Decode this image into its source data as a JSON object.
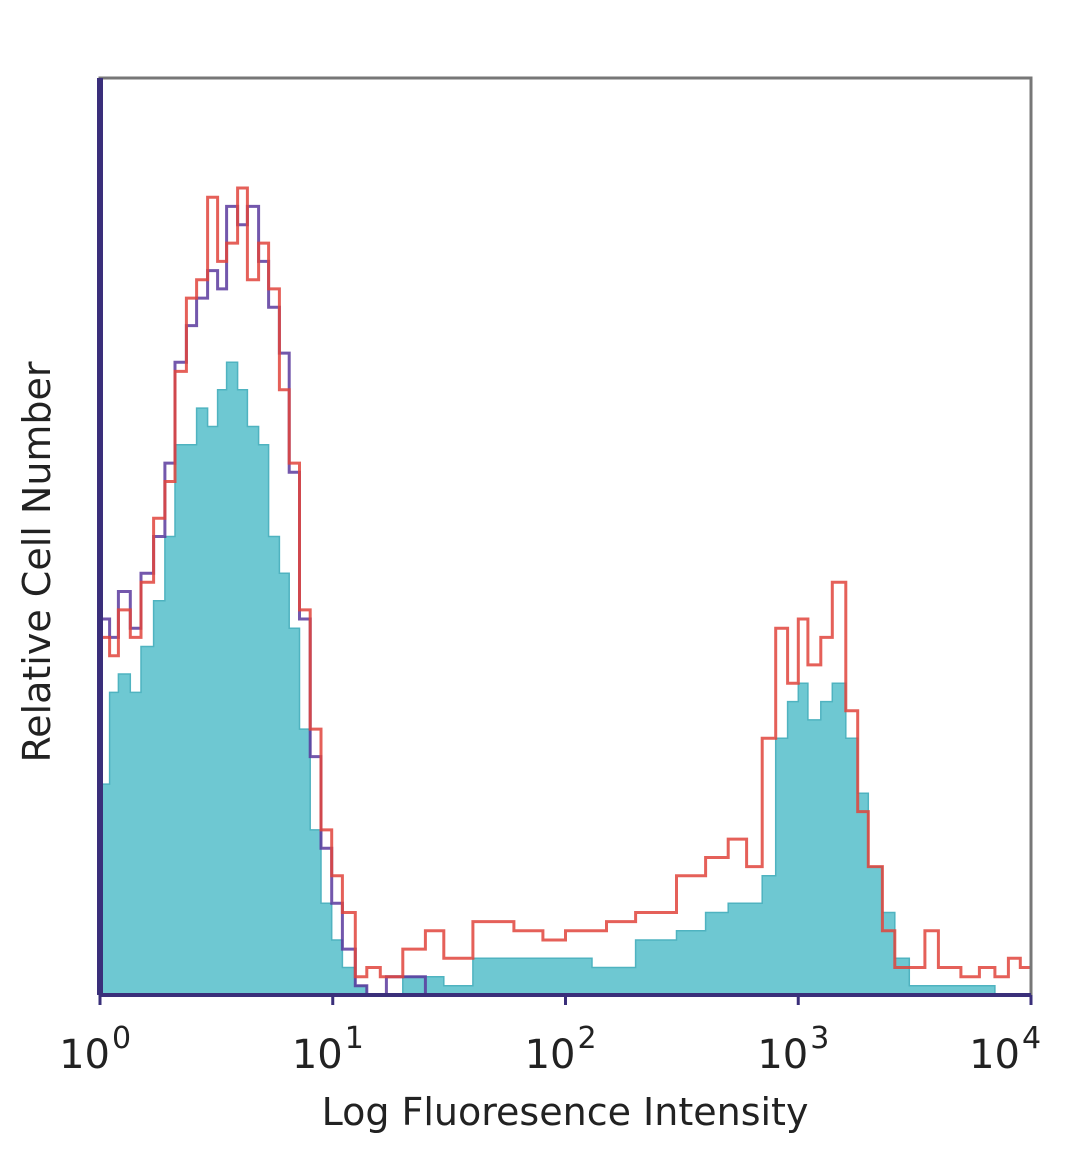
{
  "chart_data": {
    "type": "area",
    "xlabel": "Log Fluoresence Intensity",
    "ylabel": "Relative Cell Number",
    "x_scale": "log",
    "xlim": [
      1,
      10000
    ],
    "ylim": [
      0,
      1
    ],
    "grid": false,
    "x_ticks": [
      {
        "base": "10",
        "exp": "0",
        "value": 1
      },
      {
        "base": "10",
        "exp": "1",
        "value": 10
      },
      {
        "base": "10",
        "exp": "2",
        "value": 100
      },
      {
        "base": "10",
        "exp": "3",
        "value": 1000
      },
      {
        "base": "10",
        "exp": "4",
        "value": 10000
      }
    ],
    "colors": {
      "fill": "#6ec8d2",
      "purple": "#5b3a9e",
      "red": "#e0443c",
      "axis": "#3a2f7a"
    },
    "series": [
      {
        "style": "filled",
        "x": [
          1.0,
          1.1,
          1.2,
          1.35,
          1.5,
          1.7,
          1.9,
          2.1,
          2.35,
          2.6,
          2.9,
          3.2,
          3.5,
          3.9,
          4.3,
          4.8,
          5.3,
          5.9,
          6.5,
          7.2,
          8.0,
          8.9,
          9.9,
          11,
          12.5,
          14,
          20,
          30,
          40,
          50,
          70,
          100,
          130,
          200,
          300,
          400,
          500,
          600,
          700,
          800,
          900,
          1000,
          1100,
          1250,
          1400,
          1600,
          1800,
          2000,
          2300,
          2600,
          3000,
          4000,
          5000,
          7000,
          9000,
          10000
        ],
        "y": [
          0.23,
          0.33,
          0.35,
          0.33,
          0.38,
          0.43,
          0.5,
          0.6,
          0.6,
          0.64,
          0.62,
          0.66,
          0.69,
          0.66,
          0.62,
          0.6,
          0.5,
          0.46,
          0.4,
          0.29,
          0.18,
          0.1,
          0.06,
          0.03,
          0.01,
          0.0,
          0.02,
          0.01,
          0.04,
          0.04,
          0.04,
          0.04,
          0.03,
          0.06,
          0.07,
          0.09,
          0.1,
          0.1,
          0.13,
          0.28,
          0.32,
          0.34,
          0.3,
          0.32,
          0.34,
          0.28,
          0.22,
          0.14,
          0.09,
          0.04,
          0.01,
          0.01,
          0.01,
          0.0,
          0.0,
          0.0
        ]
      },
      {
        "style": "outline",
        "x": [
          1.0,
          1.1,
          1.2,
          1.35,
          1.5,
          1.7,
          1.9,
          2.1,
          2.35,
          2.6,
          2.9,
          3.2,
          3.5,
          3.9,
          4.3,
          4.8,
          5.3,
          5.9,
          6.5,
          7.2,
          8.0,
          8.9,
          9.9,
          11,
          12.5,
          14,
          17,
          20,
          25,
          30
        ],
        "y": [
          0.41,
          0.39,
          0.44,
          0.4,
          0.46,
          0.5,
          0.58,
          0.69,
          0.73,
          0.76,
          0.79,
          0.77,
          0.86,
          0.84,
          0.86,
          0.8,
          0.75,
          0.7,
          0.57,
          0.41,
          0.26,
          0.16,
          0.1,
          0.05,
          0.01,
          0.0,
          0.02,
          0.02,
          0.0,
          0.0
        ]
      },
      {
        "style": "outline",
        "x": [
          1.0,
          1.1,
          1.2,
          1.35,
          1.5,
          1.7,
          1.9,
          2.1,
          2.35,
          2.6,
          2.9,
          3.2,
          3.5,
          3.9,
          4.3,
          4.8,
          5.3,
          5.9,
          6.5,
          7.2,
          8.0,
          8.9,
          9.9,
          11,
          12.5,
          14,
          16,
          20,
          25,
          30,
          40,
          50,
          60,
          80,
          100,
          150,
          200,
          300,
          400,
          500,
          600,
          700,
          800,
          900,
          1000,
          1100,
          1250,
          1400,
          1600,
          1800,
          2000,
          2300,
          2600,
          3000,
          3500,
          4000,
          5000,
          6000,
          7000,
          8000,
          9000,
          10000
        ],
        "y": [
          0.39,
          0.37,
          0.42,
          0.39,
          0.45,
          0.52,
          0.56,
          0.68,
          0.76,
          0.78,
          0.87,
          0.8,
          0.82,
          0.88,
          0.78,
          0.82,
          0.77,
          0.66,
          0.58,
          0.42,
          0.29,
          0.18,
          0.13,
          0.09,
          0.02,
          0.03,
          0.02,
          0.05,
          0.07,
          0.04,
          0.08,
          0.08,
          0.07,
          0.06,
          0.07,
          0.08,
          0.09,
          0.13,
          0.15,
          0.17,
          0.14,
          0.28,
          0.4,
          0.34,
          0.41,
          0.36,
          0.39,
          0.45,
          0.31,
          0.2,
          0.14,
          0.07,
          0.03,
          0.03,
          0.07,
          0.03,
          0.02,
          0.03,
          0.02,
          0.04,
          0.03,
          0.0
        ]
      }
    ]
  }
}
